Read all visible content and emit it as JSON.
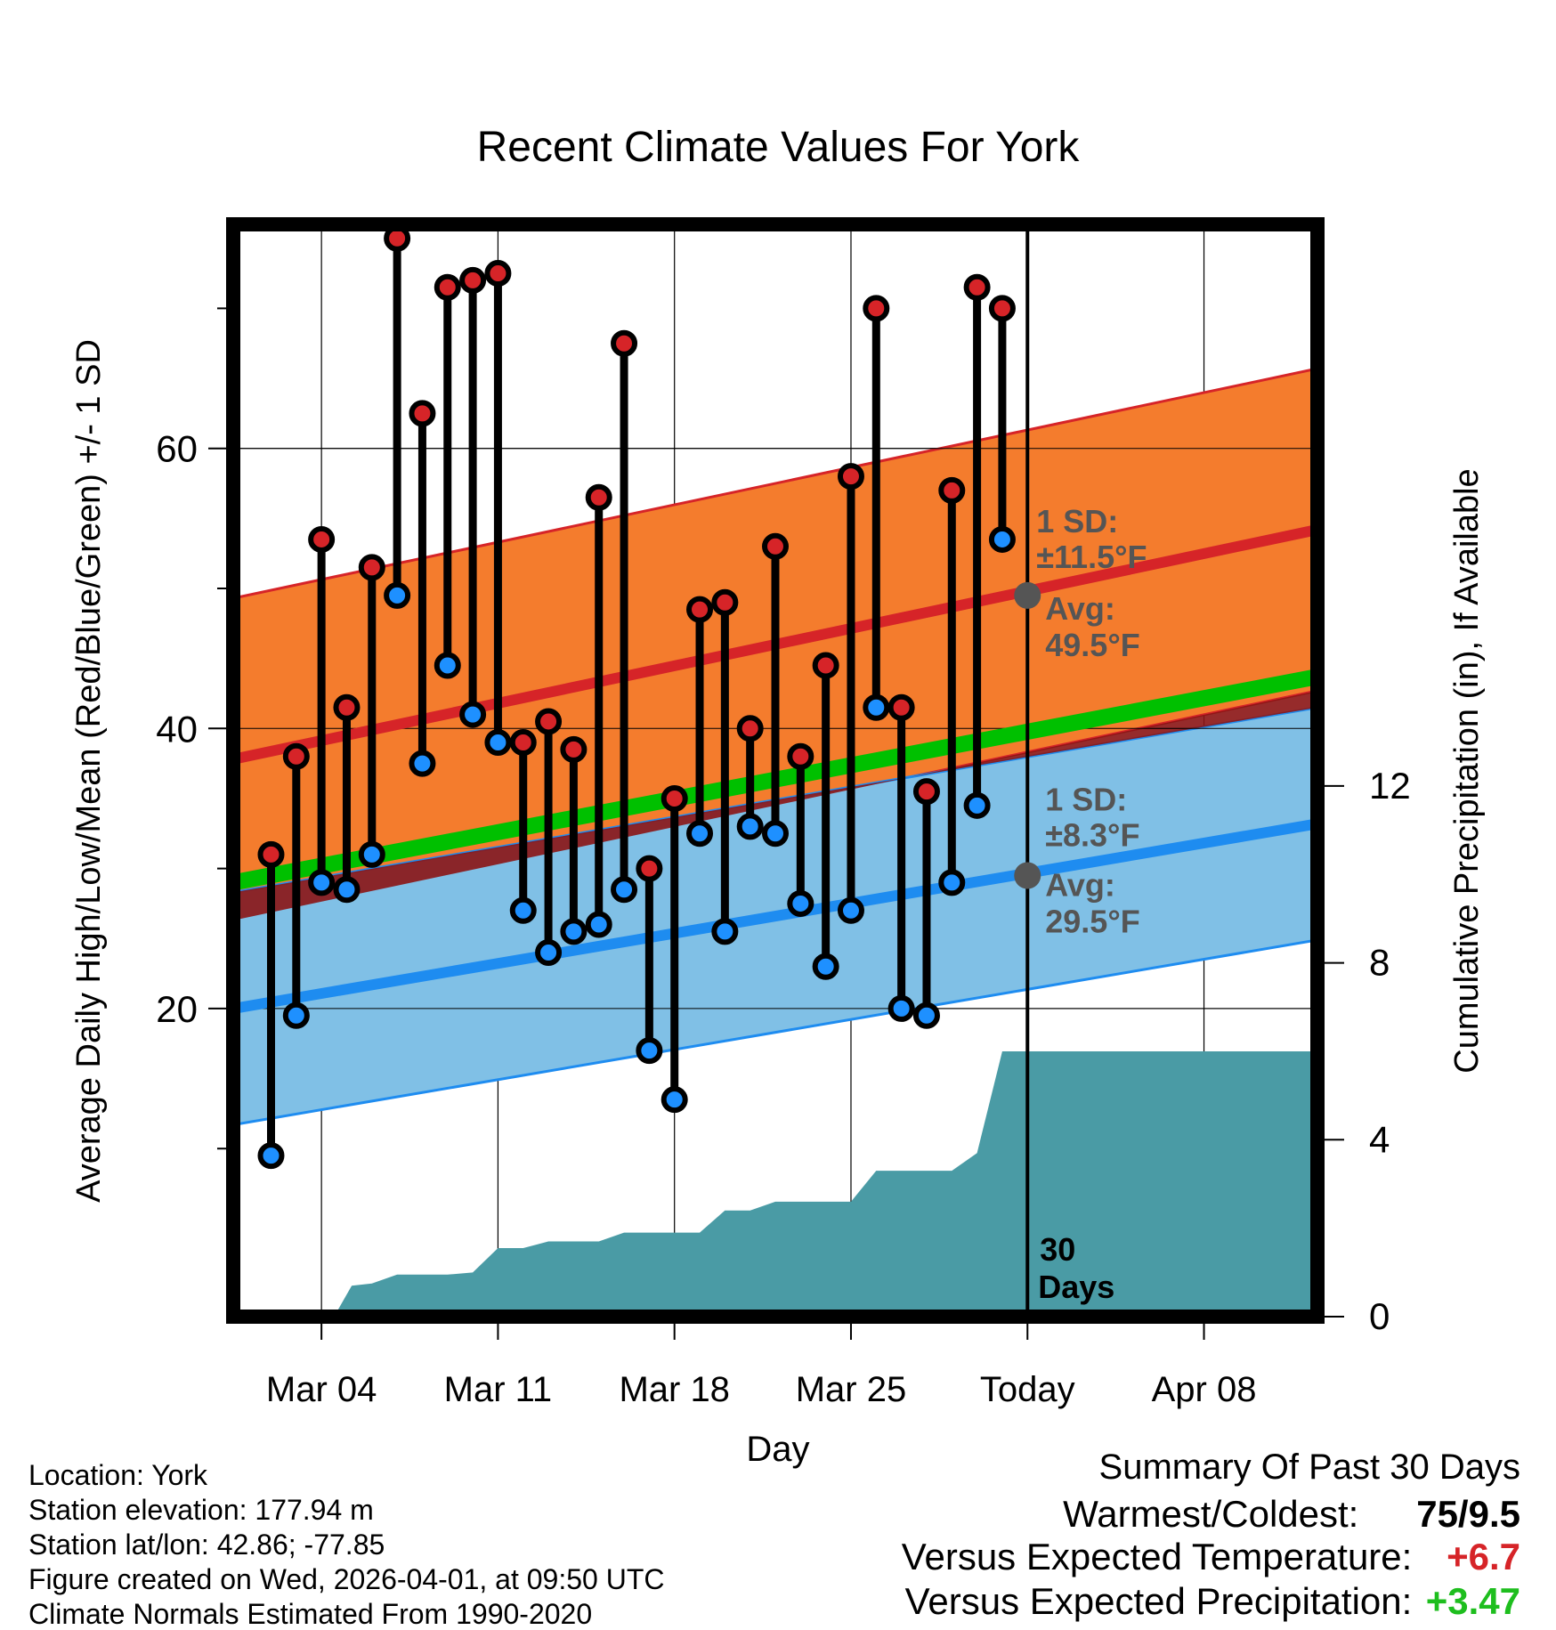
{
  "chart_data": {
    "type": "line",
    "title": "Recent Climate Values For York",
    "xlabel": "Day",
    "ylabel": "Average Daily High/Low/Mean (Red/Blue/Green) +/- 1 SD",
    "y2label": "Cumulative Precipitation (in), If Available",
    "x_ticks": [
      "Mar 04",
      "Mar 11",
      "Mar 18",
      "Mar 25",
      "Today",
      "Apr 08"
    ],
    "x_tick_days": [
      4,
      11,
      18,
      25,
      32,
      39
    ],
    "xlim": [
      0.5,
      43.5
    ],
    "ylim": [
      -2,
      76
    ],
    "y_ticks": [
      20,
      40,
      60
    ],
    "y_minor_ticks": [
      10,
      30,
      50,
      70
    ],
    "y2lim": [
      0,
      24.7
    ],
    "y2_ticks": [
      0,
      4,
      8,
      12
    ],
    "today_day": 32,
    "normals": {
      "days": [
        0.5,
        43.5
      ],
      "high_mean": [
        37.8,
        54.2
      ],
      "high_sd": 11.5,
      "low_mean": [
        20.0,
        33.2
      ],
      "low_sd": 8.3,
      "mean": [
        29.0,
        43.7
      ]
    },
    "daily": {
      "days": [
        2,
        3,
        4,
        5,
        6,
        7,
        8,
        9,
        10,
        11,
        12,
        13,
        14,
        15,
        16,
        17,
        18,
        19,
        20,
        21,
        22,
        23,
        24,
        25,
        26,
        27,
        28,
        29,
        30,
        31
      ],
      "high": [
        31,
        38,
        53.5,
        41.5,
        51.5,
        75,
        62.5,
        71.5,
        72,
        72.5,
        39,
        40.5,
        38.5,
        56.5,
        67.5,
        30,
        35,
        48.5,
        49,
        40,
        53,
        38,
        44.5,
        58,
        70,
        41.5,
        35.5,
        57,
        71.5,
        70
      ],
      "low": [
        9.5,
        19.5,
        29,
        28.5,
        31,
        49.5,
        37.5,
        44.5,
        41,
        39,
        27,
        24,
        25.5,
        26,
        28.5,
        17,
        13.5,
        32.5,
        25.5,
        33,
        32.5,
        27.5,
        23,
        27,
        41.5,
        20,
        19.5,
        29,
        34.5,
        53.5
      ]
    },
    "precip": {
      "days": [
        4.5,
        5.2,
        6,
        7,
        8,
        9,
        10,
        11,
        12,
        13,
        14,
        15,
        16,
        17,
        18,
        19,
        20,
        21,
        22,
        23,
        24,
        25,
        26,
        27,
        28,
        29,
        30,
        31,
        32,
        43.5
      ],
      "cumulative": [
        0,
        0.7,
        0.75,
        0.95,
        0.95,
        0.95,
        1.0,
        1.55,
        1.55,
        1.7,
        1.7,
        1.7,
        1.9,
        1.9,
        1.9,
        1.9,
        2.4,
        2.4,
        2.6,
        2.6,
        2.6,
        2.6,
        3.3,
        3.3,
        3.3,
        3.3,
        3.7,
        6.0,
        6.0,
        6.0
      ]
    },
    "annotations": {
      "high_sd_label": "1 SD:",
      "high_sd_value": "±11.5°F",
      "high_avg_label": "Avg:",
      "high_avg_value": "49.5°F",
      "high_avg": 49.5,
      "low_sd_label": "1 SD:",
      "low_sd_value": "±8.3°F",
      "low_avg_label": "Avg:",
      "low_avg_value": "29.5°F",
      "low_avg": 29.5,
      "days_number": "30",
      "days_word": "Days"
    },
    "colors": {
      "high_band": "#F47C2D",
      "high_line": "#D62428",
      "low_band": "#80C0E6",
      "low_line": "#1E8CF0",
      "mean_line": "#00C000",
      "overlap": "#8B1414",
      "precip": "#4A9BA5",
      "high_dot": "#D62428",
      "low_dot": "#1E90FF",
      "annotation": "#555555"
    }
  },
  "info": {
    "location": "Location: York",
    "elevation": "Station elevation: 177.94 m",
    "latlon": "Station lat/lon: 42.86; -77.85",
    "created": "Figure created on Wed, 2026-04-01, at 09:50 UTC",
    "normals": "Climate Normals Estimated From 1990-2020"
  },
  "summary": {
    "title": "Summary Of Past 30 Days",
    "warmest_label": "Warmest/Coldest:",
    "warmest_value": "75/9.5",
    "temp_label": "Versus Expected Temperature:",
    "temp_value": "+6.7",
    "temp_color": "#D62428",
    "precip_label": "Versus Expected Precipitation:",
    "precip_value": "+3.47",
    "precip_color": "#1EBE1E"
  }
}
